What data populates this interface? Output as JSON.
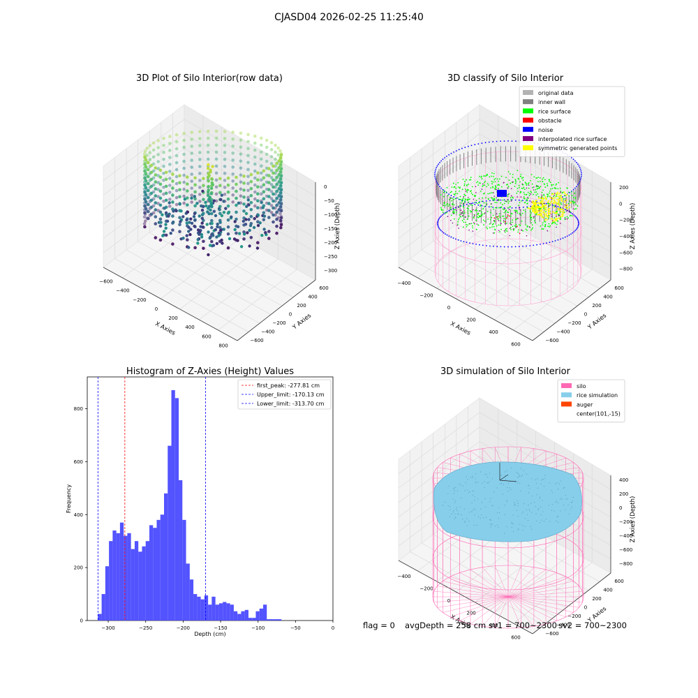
{
  "figure": {
    "suptitle": "CJASD04 2026-02-25 11:25:40"
  },
  "status": {
    "flag": "flag = 0",
    "avg_depth": "avgDepth = 258 cm",
    "sv1": "sv1 = 700~2300",
    "sv2": "sv2 = 700~2300"
  },
  "colors": {
    "original_data": "#b3b3b3",
    "inner_wall": "#808080",
    "rice_surface": "#00ff00",
    "obstacle": "#ff0000",
    "noise": "#0000ff",
    "interpolated_rice_surface": "#800080",
    "symmetric_generated_points": "#ffff00",
    "silo": "#ff69b4",
    "rice_simulation": "#87ceeb",
    "auger": "#ff4500",
    "hist_bar": "#4d4dff",
    "first_peak_line": "#ff0000",
    "limit_line": "#0000ff"
  },
  "chart_data": [
    {
      "type": "scatter",
      "projection": "3d",
      "title": "3D Plot of Silo Interior(row data)",
      "xlabel": "X Axies",
      "ylabel": "Y Axies",
      "zlabel": "Z Axies (Depth)",
      "xticks": [
        "−600",
        "−400",
        "−200",
        "0",
        "200",
        "400",
        "600",
        "800"
      ],
      "yticks": [
        "−600",
        "−400",
        "−200",
        "0",
        "200",
        "400",
        "600"
      ],
      "zticks": [
        "0",
        "−50",
        "−100",
        "−150",
        "−200",
        "−250",
        "−300"
      ],
      "colormap": "viridis",
      "series": [
        {
          "shape": "cylinder wall",
          "center": [
            100,
            0
          ],
          "radius": 440,
          "z_range": [
            -320,
            -15
          ]
        },
        {
          "shape": "surface",
          "z_range": [
            -320,
            -150
          ]
        }
      ]
    },
    {
      "type": "scatter",
      "projection": "3d",
      "title": "3D classify of Silo Interior",
      "xlabel": "X Axies",
      "ylabel": "Y Axies",
      "zlabel": "Z Axies (Depth)",
      "xticks": [
        "−400",
        "−200",
        "0",
        "200",
        "400",
        "600"
      ],
      "yticks": [
        "−600",
        "−400",
        "−200",
        "0",
        "200",
        "400",
        "600"
      ],
      "zticks": [
        "200",
        "0",
        "−200",
        "−400",
        "−600",
        "−800"
      ],
      "legend_position": "top-right",
      "legend": [
        {
          "name": "original data",
          "color": "#b3b3b3"
        },
        {
          "name": "inner wall",
          "color": "#808080"
        },
        {
          "name": "rice surface",
          "color": "#00ff00"
        },
        {
          "name": "obstacle",
          "color": "#ff0000"
        },
        {
          "name": "noise",
          "color": "#0000ff"
        },
        {
          "name": "interpolated rice surface",
          "color": "#800080"
        },
        {
          "name": "symmetric generated points",
          "color": "#ffff00"
        }
      ],
      "ztop_partial": "200"
    },
    {
      "type": "bar",
      "title": "Histogram of Z-Axies (Height) Values",
      "xlabel": "Depth (cm)",
      "ylabel": "Frequency",
      "xlim": [
        -328,
        0
      ],
      "ylim": [
        0,
        920
      ],
      "xticks": [
        -300,
        -250,
        -200,
        -150,
        -100,
        -50,
        0
      ],
      "yticks": [
        0,
        200,
        400,
        600,
        800
      ],
      "bin_start": -313.7,
      "bin_width": 4.9,
      "values": [
        25,
        100,
        205,
        300,
        340,
        330,
        370,
        320,
        330,
        270,
        300,
        260,
        280,
        300,
        360,
        350,
        380,
        400,
        480,
        660,
        870,
        840,
        530,
        380,
        215,
        155,
        100,
        90,
        80,
        95,
        60,
        90,
        60,
        65,
        70,
        65,
        60,
        35,
        25,
        35,
        40,
        10,
        10,
        35,
        45,
        60,
        5,
        5,
        5,
        5
      ],
      "lines": [
        {
          "label": "first_peak: -277.81 cm",
          "x": -277.81,
          "color": "#ff0000"
        },
        {
          "label": "Upper_limit: -170.13 cm",
          "x": -170.13,
          "color": "#0000ff"
        },
        {
          "label": "Lower_limit: -313.70 cm",
          "x": -313.7,
          "color": "#0000ff"
        }
      ],
      "legend_position": "top-right"
    },
    {
      "type": "scatter",
      "projection": "3d",
      "title": "3D simulation of Silo Interior",
      "xlabel": "X Axies",
      "ylabel": "Y Axies",
      "zlabel": "Z Axies (Depth)",
      "xticks": [
        "−400",
        "−200",
        "0",
        "200",
        "400",
        "600"
      ],
      "yticks": [
        "−600",
        "−400",
        "−200",
        "0",
        "200",
        "400",
        "600"
      ],
      "zticks": [
        "400",
        "200",
        "0",
        "−200",
        "−400",
        "−600",
        "−800"
      ],
      "legend_position": "top-right",
      "legend": [
        {
          "name": "silo",
          "color": "#ff69b4"
        },
        {
          "name": "rice simulation",
          "color": "#87ceeb"
        },
        {
          "name": "auger",
          "color": "#ff4500"
        },
        {
          "name": "center(101,-15)",
          "color": ""
        }
      ]
    }
  ]
}
